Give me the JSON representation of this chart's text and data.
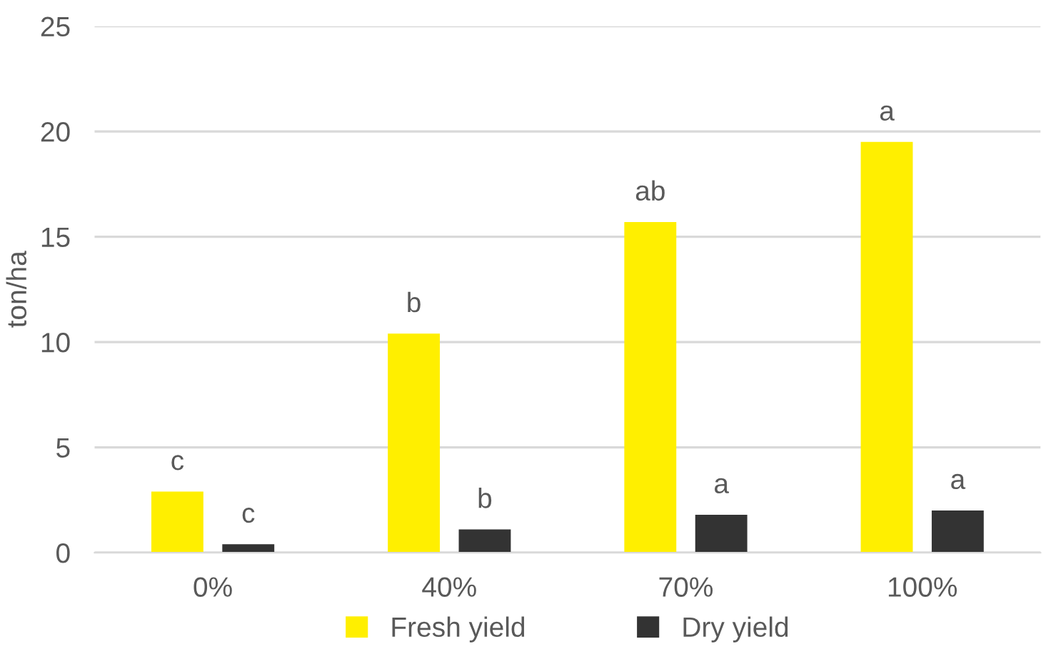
{
  "chart_data": {
    "type": "bar",
    "ylabel": "ton/ha",
    "categories": [
      "0%",
      "40%",
      "70%",
      "100%"
    ],
    "series": [
      {
        "name": "Fresh yield",
        "color": "#ffef00",
        "values": [
          2.9,
          10.4,
          15.7,
          19.5
        ],
        "value_labels": [
          "c",
          "b",
          "ab",
          "a"
        ]
      },
      {
        "name": "Dry yield",
        "color": "#333333",
        "values": [
          0.4,
          1.1,
          1.8,
          2.0
        ],
        "value_labels": [
          "c",
          "b",
          "a",
          "a"
        ]
      }
    ],
    "ylim": [
      0,
      25
    ],
    "yticks": [
      0,
      5,
      10,
      15,
      20,
      25
    ],
    "grid": "y",
    "legend": "bottom"
  }
}
